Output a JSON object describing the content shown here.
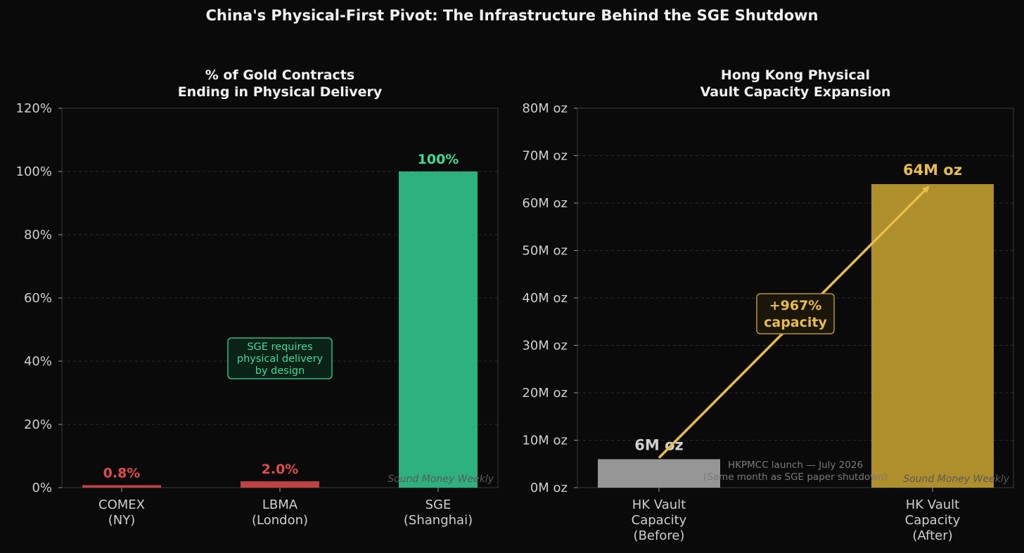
{
  "figure": {
    "title": "China's Physical-First Pivot: The Infrastructure Behind the SGE Shutdown",
    "watermark": "Sound Money Weekly"
  },
  "colors": {
    "background": "#0a0a0a",
    "axis": "#3a3a3a",
    "tick_text": "#cfcfcf",
    "red": "#e04b4b",
    "green": "#2fba86",
    "green_label": "#3ddc97",
    "gray": "#9e9e9e",
    "gold": "#b8962e",
    "gold_label": "#e8bd4a"
  },
  "chart_data": [
    {
      "type": "bar",
      "title": "% of Gold Contracts\nEnding in Physical Delivery",
      "categories": [
        "COMEX\n(NY)",
        "LBMA\n(London)",
        "SGE\n(Shanghai)"
      ],
      "values": [
        0.8,
        2.0,
        100
      ],
      "value_labels": [
        "0.8%",
        "2.0%",
        "100%"
      ],
      "ylim": [
        0,
        120
      ],
      "yticks": [
        0,
        20,
        40,
        60,
        80,
        100,
        120
      ],
      "ytick_labels": [
        "0%",
        "20%",
        "40%",
        "60%",
        "80%",
        "100%",
        "120%"
      ],
      "xlabel": "",
      "ylabel": "",
      "grid": true,
      "annotation": {
        "text": "SGE requires\nphysical delivery\nby design",
        "x_category": "LBMA\n(London)",
        "y": 40
      }
    },
    {
      "type": "bar",
      "title": "Hong Kong Physical\nVault Capacity Expansion",
      "categories": [
        "HK Vault\nCapacity\n(Before)",
        "HK Vault\nCapacity\n(After)"
      ],
      "values": [
        6,
        64
      ],
      "value_labels": [
        "6M oz",
        "64M oz"
      ],
      "ylim": [
        0,
        80
      ],
      "yticks": [
        0,
        10,
        20,
        30,
        40,
        50,
        60,
        70,
        80
      ],
      "ytick_labels": [
        "0M oz",
        "10M oz",
        "20M oz",
        "30M oz",
        "40M oz",
        "50M oz",
        "60M oz",
        "70M oz",
        "80M oz"
      ],
      "xlabel": "",
      "ylabel": "",
      "grid": true,
      "growth_label": "+967%\ncapacity",
      "note": "HKPMCC launch — July 2026\n(Same month as SGE paper shutdown)"
    }
  ]
}
